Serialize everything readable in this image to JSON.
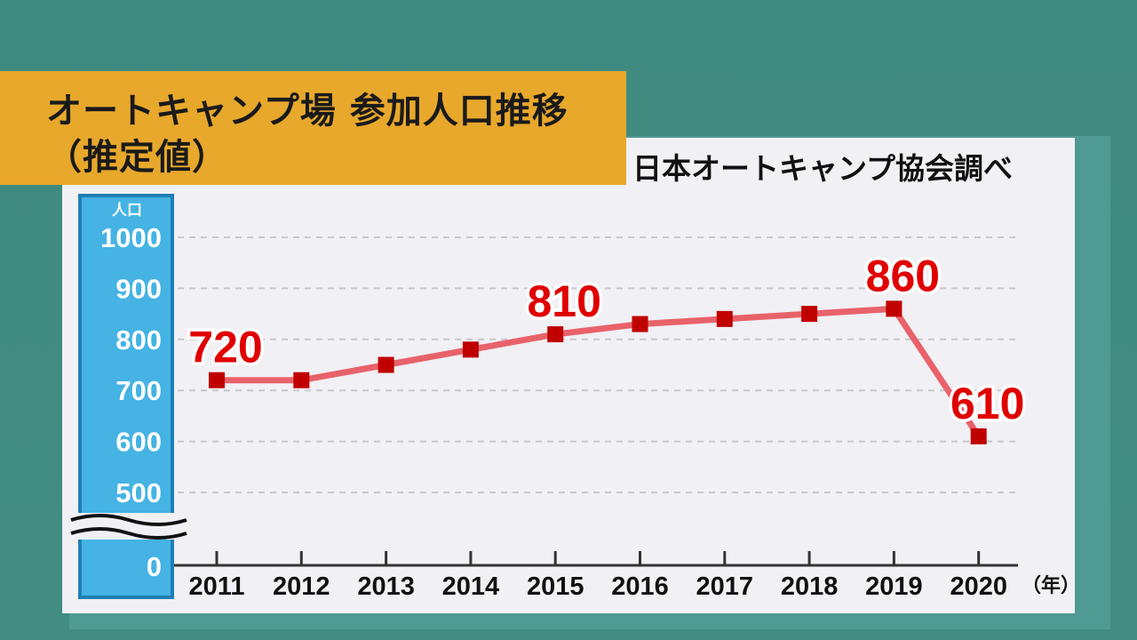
{
  "title": {
    "line1": "オートキャンプ場 参加人口推移",
    "line2": "（推定値）"
  },
  "source": "日本オートキャンプ協会調べ",
  "colors": {
    "background": "#3f8a80",
    "title_box": "#e8a82c",
    "panel": "#f1f0f4",
    "y_axis_band": "#45b3e3",
    "line": "#e8626a",
    "marker": "#c00000",
    "label": "#e00000"
  },
  "chart_data": {
    "type": "line",
    "categories": [
      "2011",
      "2012",
      "2013",
      "2014",
      "2015",
      "2016",
      "2017",
      "2018",
      "2019",
      "2020"
    ],
    "series": [
      {
        "values": [
          720,
          720,
          750,
          780,
          810,
          830,
          840,
          850,
          860,
          610
        ]
      }
    ],
    "labeled_points": [
      {
        "index": 0,
        "text": "720"
      },
      {
        "index": 4,
        "text": "810"
      },
      {
        "index": 8,
        "text": "860"
      },
      {
        "index": 9,
        "text": "610"
      }
    ],
    "ylabel": "人口",
    "xunit": "（年）",
    "yticks": [
      "1000",
      "900",
      "800",
      "700",
      "600",
      "500",
      "0"
    ],
    "ylim": [
      500,
      1000
    ],
    "axis_break": true,
    "grid": "horizontal dashed"
  }
}
